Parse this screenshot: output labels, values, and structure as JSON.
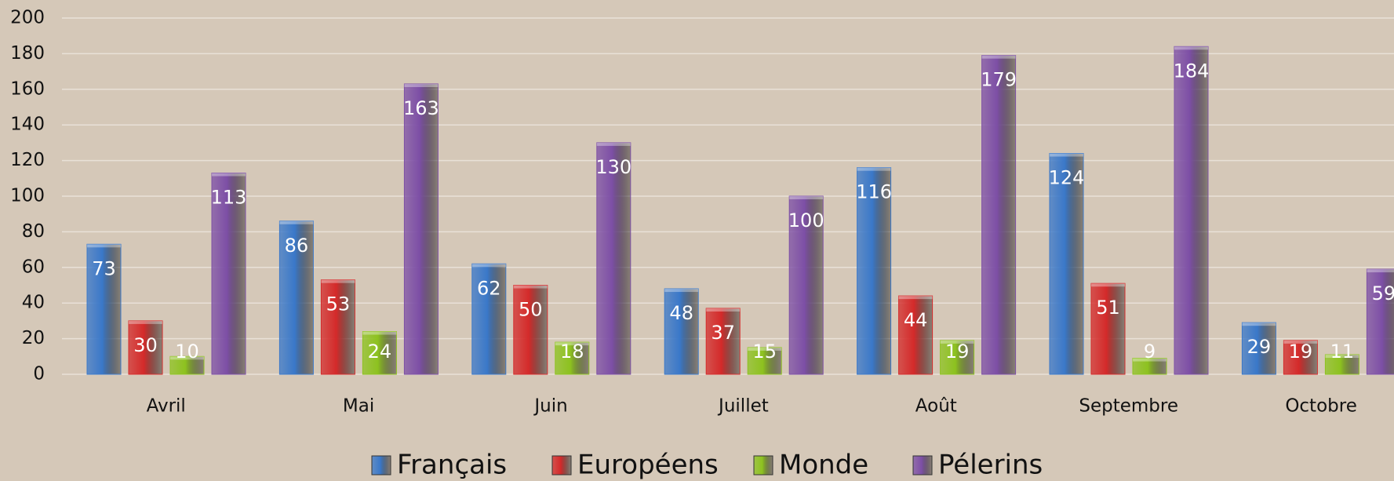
{
  "chart_data": {
    "type": "bar",
    "categories": [
      "Avril",
      "Mai",
      "Juin",
      "Juillet",
      "Août",
      "Septembre",
      "Octobre"
    ],
    "series": [
      {
        "name": "Français",
        "color": "#3a78c9",
        "values": [
          73,
          86,
          62,
          48,
          116,
          124,
          29
        ]
      },
      {
        "name": "Européens",
        "color": "#d42a2a",
        "values": [
          30,
          53,
          50,
          37,
          44,
          51,
          19
        ]
      },
      {
        "name": "Monde",
        "color": "#8dc21f",
        "values": [
          10,
          24,
          18,
          15,
          19,
          9,
          11
        ]
      },
      {
        "name": "Pélerins",
        "color": "#7d4fa6",
        "values": [
          113,
          163,
          130,
          100,
          179,
          184,
          59
        ]
      }
    ],
    "ylim": [
      0,
      200
    ],
    "yticks": [
      0,
      20,
      40,
      60,
      80,
      100,
      120,
      140,
      160,
      180,
      200
    ],
    "grid": true,
    "legend": "bottom"
  }
}
